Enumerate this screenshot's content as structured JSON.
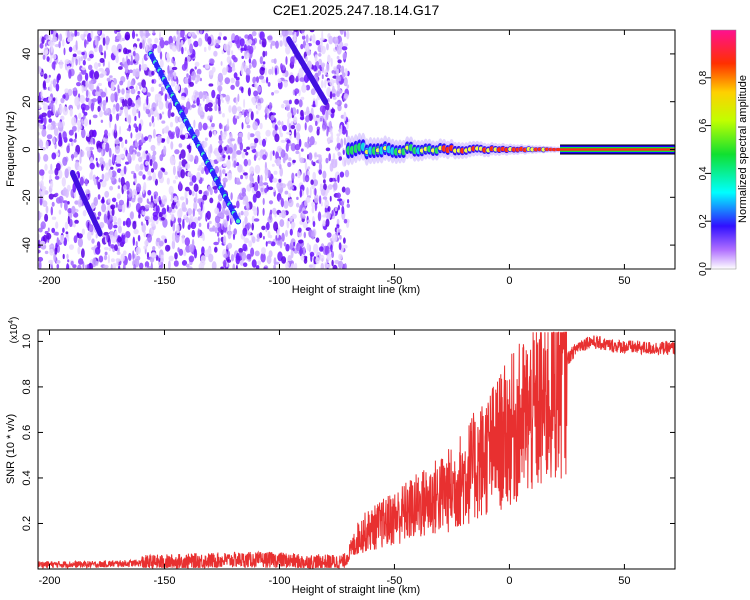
{
  "title": "C2E1.2025.247.18.14.G17",
  "chart_data": [
    {
      "type": "heatmap",
      "name": "spectrogram",
      "xlabel": "Height of straight line (km)",
      "ylabel": "Frequency (Hz)",
      "xlim": [
        -205,
        72
      ],
      "ylim": [
        -50,
        50
      ],
      "xticks": [
        -200,
        -150,
        -100,
        -50,
        0,
        50
      ],
      "yticks": [
        -40,
        -20,
        0,
        20,
        40
      ],
      "description_features": {
        "noise_region_x": [
          -205,
          -70
        ],
        "signal_band_freq_hz": 0,
        "diagonal_tracks": [
          {
            "x": [
              -156,
              -118
            ],
            "y": [
              40,
              -30
            ]
          },
          {
            "x": [
              -96,
              -80
            ],
            "y": [
              46,
              20
            ]
          },
          {
            "x": [
              -190,
              -178
            ],
            "y": [
              -10,
              -35
            ]
          }
        ]
      },
      "colorbar": {
        "label": "Normalized spectral amplitude",
        "range": [
          0,
          1
        ],
        "ticks": [
          "0.0",
          "0.2",
          "0.4",
          "0.6",
          "0.8"
        ]
      }
    },
    {
      "type": "line",
      "name": "snr",
      "xlabel": "Height of straight line (km)",
      "ylabel": "SNR (10 * v/v)",
      "multiplier": "(x10",
      "multiplier_exp": "4",
      "multiplier_close": ")",
      "xlim": [
        -205,
        72
      ],
      "ylim": [
        0,
        1.05
      ],
      "xticks": [
        -200,
        -150,
        -100,
        -50,
        0,
        50
      ],
      "yticks": [
        "0.2",
        "0.4",
        "0.6",
        "0.8",
        "1.0"
      ],
      "ytick_values": [
        0.2,
        0.4,
        0.6,
        0.8,
        1.0
      ],
      "series_color": "#e83030",
      "series": [
        {
          "name": "SNR",
          "x": [
            -205,
            -180,
            -150,
            -120,
            -100,
            -90,
            -72,
            -65,
            -55,
            -45,
            -35,
            -25,
            -15,
            -5,
            5,
            15,
            20,
            25,
            30,
            35,
            45,
            60,
            72
          ],
          "y": [
            0.02,
            0.02,
            0.03,
            0.04,
            0.04,
            0.03,
            0.03,
            0.15,
            0.2,
            0.25,
            0.3,
            0.35,
            0.45,
            0.55,
            0.65,
            0.72,
            0.82,
            0.92,
            0.98,
            1.0,
            0.98,
            0.97,
            0.97
          ]
        }
      ]
    }
  ]
}
